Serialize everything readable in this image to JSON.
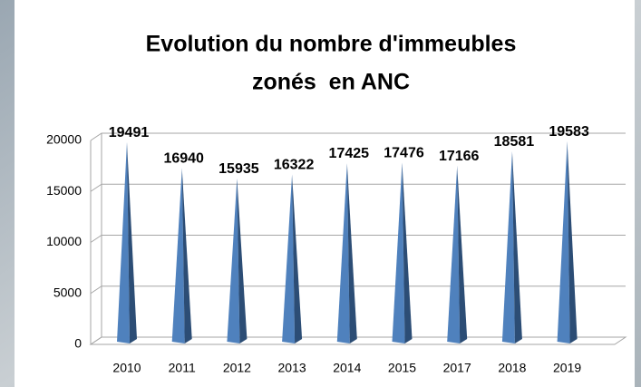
{
  "chart_data": {
    "type": "bar",
    "title": [
      "Evolution du nombre d'immeubles",
      "zonés  en ANC"
    ],
    "categories": [
      "2010",
      "2011",
      "2012",
      "2013",
      "2014",
      "2015",
      "2017",
      "2018",
      "2019"
    ],
    "values": [
      19491,
      16940,
      15935,
      16322,
      17425,
      17476,
      17166,
      18581,
      19583
    ],
    "color": "#4f81bd",
    "ylim": [
      0,
      20000
    ],
    "yticks": [
      0,
      5000,
      10000,
      15000,
      20000
    ],
    "grid": true
  }
}
